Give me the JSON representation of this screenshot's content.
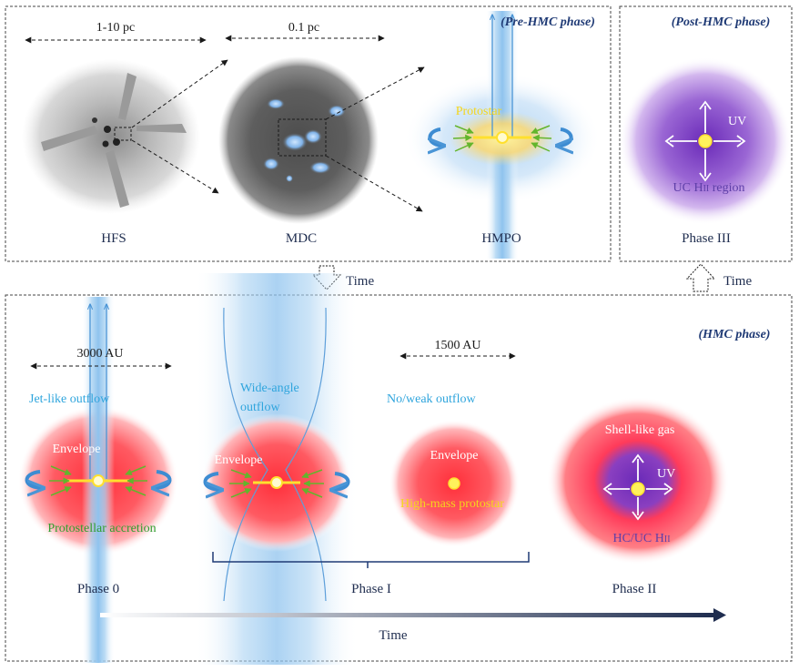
{
  "top_left_panel": {
    "title": "(Pre-HMC phase)",
    "scale_hfs": "1-10 pc",
    "scale_mdc": "0.1 pc",
    "labels": {
      "hfs": "HFS",
      "mdc": "MDC",
      "hmpo": "HMPO",
      "protostar": "Protostar"
    }
  },
  "top_right_panel": {
    "title": "(Post-HMC phase)",
    "uv": "UV",
    "region": "UC H",
    "region_sub": "II",
    "region_tail": " region",
    "phase": "Phase III"
  },
  "time_labels": {
    "left": "Time",
    "right": "Time",
    "bottom": "Time"
  },
  "bottom_panel": {
    "title": "(HMC phase)",
    "scale_phase0": "3000 AU",
    "scale_phase2": "1500 AU",
    "jet_outflow": "Jet-like outflow",
    "wide_outflow_1": "Wide-angle",
    "wide_outflow_2": "outflow",
    "weak_outflow": "No/weak outflow",
    "envelope": "Envelope",
    "accretion": "Protostellar accretion",
    "high_mass_protostar": "High-mass protostar",
    "shell_gas": "Shell-like gas",
    "uv": "UV",
    "hcuc": "HC/UC H",
    "hcuc_sub": "II",
    "phase0": "Phase 0",
    "phase1": "Phase I",
    "phase2": "Phase II"
  },
  "colors": {
    "outflow_blue": "#8ec3ec",
    "envelope_red": "#ff3b45",
    "hii_purple": "#7a3fc0",
    "star_yellow": "#fff36a",
    "accretion_green": "#63b52c",
    "navy": "#1f3a75"
  }
}
